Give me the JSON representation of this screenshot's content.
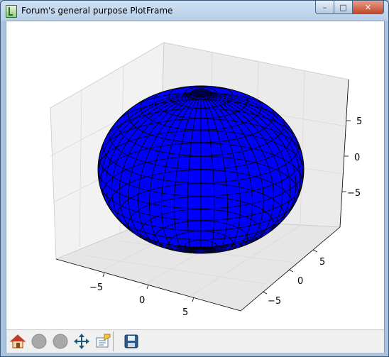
{
  "window": {
    "title": "Forum's general purpose PlotFrame",
    "minimize_label": "–",
    "maximize_label": "□",
    "close_label": "✕"
  },
  "toolbar": {
    "buttons": [
      {
        "icon": "home-icon"
      },
      {
        "icon": "back-icon"
      },
      {
        "icon": "forward-icon"
      },
      {
        "icon": "pan-icon"
      },
      {
        "icon": "subplot-config-icon"
      },
      {
        "icon": "save-icon"
      }
    ]
  },
  "chart_data": {
    "type": "surface-3d",
    "surface": "ellipsoid",
    "face_color": "#0000ff",
    "edge_color": "#000000",
    "grid": true,
    "x_ticks": [
      "−5",
      "0",
      "5"
    ],
    "y_ticks": [
      "−5",
      "0",
      "5"
    ],
    "z_ticks": [
      "5",
      "0",
      "−5"
    ],
    "xlim": [
      -10,
      10
    ],
    "ylim": [
      -10,
      10
    ],
    "zlim": [
      -10,
      10
    ]
  }
}
